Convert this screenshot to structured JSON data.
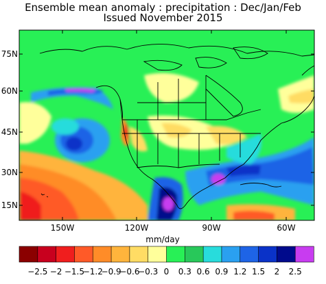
{
  "title": {
    "line1": "Ensemble mean anomaly : precipitation : Dec/Jan/Feb",
    "line2": "Issued November 2015"
  },
  "axes": {
    "lat_labels": [
      "75N",
      "60N",
      "45N",
      "30N",
      "15N"
    ],
    "lon_labels": [
      "150W",
      "120W",
      "90W",
      "60W"
    ]
  },
  "colorbar": {
    "units": "mm/day",
    "tick_labels": [
      "−2.5",
      "−2",
      "−1.5",
      "−1.2",
      "−0.9",
      "−0.6",
      "−0.3",
      "0",
      "0.3",
      "0.6",
      "0.9",
      "1.2",
      "1.5",
      "2",
      "2.5"
    ],
    "colors": [
      "#8b0000",
      "#c8001e",
      "#f01e1e",
      "#ff5a28",
      "#ff8c28",
      "#ffb43c",
      "#ffdc64",
      "#ffff9b",
      "#28f056",
      "#28c85a",
      "#28dcdc",
      "#2aa0f0",
      "#1e64e6",
      "#0a32c8",
      "#000a8c",
      "#c83cf0"
    ]
  },
  "legend_colors": {
    "land_outline": "#000000",
    "neutral": "#28f056"
  }
}
